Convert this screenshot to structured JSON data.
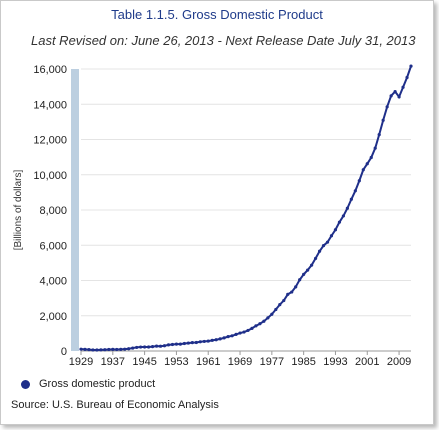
{
  "chart_data": {
    "type": "line",
    "title": "Table 1.1.5. Gross Domestic Product",
    "subtitle": "Last Revised on: June 26, 2013 - Next Release Date July 31, 2013",
    "xlabel": "",
    "ylabel": "[Billions of dollars]",
    "xlim": [
      1929,
      2012
    ],
    "ylim": [
      0,
      16000
    ],
    "x_ticks": [
      "1929",
      "1937",
      "1945",
      "1953",
      "1961",
      "1969",
      "1977",
      "1985",
      "1993",
      "2001",
      "2009"
    ],
    "y_ticks": [
      "0",
      "2,000",
      "4,000",
      "6,000",
      "8,000",
      "10,000",
      "12,000",
      "14,000",
      "16,000"
    ],
    "grid": "horizontal",
    "legend_position": "bottom-left",
    "series": [
      {
        "name": "Gross domestic product",
        "color": "#1f2f8a",
        "x": [
          1929,
          1930,
          1931,
          1932,
          1933,
          1934,
          1935,
          1936,
          1937,
          1938,
          1939,
          1940,
          1941,
          1942,
          1943,
          1944,
          1945,
          1946,
          1947,
          1948,
          1949,
          1950,
          1951,
          1952,
          1953,
          1954,
          1955,
          1956,
          1957,
          1958,
          1959,
          1960,
          1961,
          1962,
          1963,
          1964,
          1965,
          1966,
          1967,
          1968,
          1969,
          1970,
          1971,
          1972,
          1973,
          1974,
          1975,
          1976,
          1977,
          1978,
          1979,
          1980,
          1981,
          1982,
          1983,
          1984,
          1985,
          1986,
          1987,
          1988,
          1989,
          1990,
          1991,
          1992,
          1993,
          1994,
          1995,
          1996,
          1997,
          1998,
          1999,
          2000,
          2001,
          2002,
          2003,
          2004,
          2005,
          2006,
          2007,
          2008,
          2009,
          2010,
          2011,
          2012
        ],
        "values": [
          104,
          92,
          77,
          60,
          57,
          66,
          74,
          84,
          93,
          87,
          93,
          103,
          129,
          166,
          203,
          224,
          228,
          227,
          250,
          275,
          272,
          300,
          347,
          367,
          389,
          391,
          425,
          449,
          474,
          482,
          522,
          543,
          563,
          605,
          638,
          686,
          744,
          815,
          862,
          943,
          1019,
          1075,
          1167,
          1283,
          1429,
          1549,
          1689,
          1878,
          2086,
          2357,
          2632,
          2863,
          3211,
          3345,
          3638,
          4041,
          4347,
          4590,
          4870,
          5253,
          5658,
          5980,
          6174,
          6539,
          6879,
          7309,
          7664,
          8100,
          8609,
          9089,
          9661,
          10285,
          10622,
          10978,
          11511,
          12275,
          13094,
          13856,
          14478,
          14719,
          14419,
          14964,
          15518,
          16163
        ]
      }
    ]
  },
  "source": "Source: U.S. Bureau of Economic Analysis"
}
